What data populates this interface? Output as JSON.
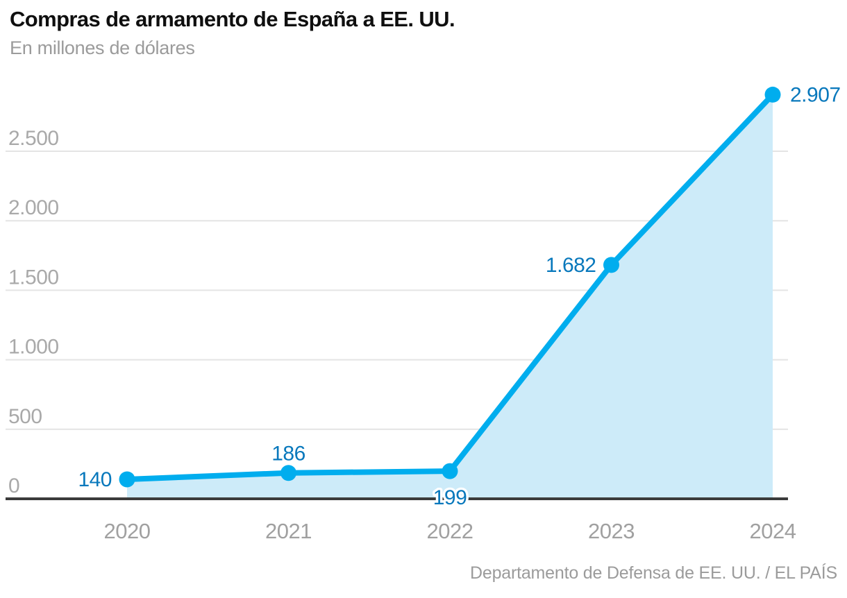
{
  "chart_data": {
    "type": "area",
    "title": "Compras de armamento de España a EE. UU.",
    "subtitle": "En millones de dólares",
    "source": "Departamento de Defensa de EE. UU. / EL PAÍS",
    "x": [
      2020,
      2021,
      2022,
      2023,
      2024
    ],
    "x_tick_labels": [
      "2020",
      "2021",
      "2022",
      "2023",
      "2024"
    ],
    "values": [
      140,
      186,
      199,
      1682,
      2907
    ],
    "point_labels": [
      "140",
      "186",
      "199",
      "1.682",
      "2.907"
    ],
    "label_positions": [
      "left",
      "top",
      "bottom",
      "left",
      "right"
    ],
    "y_ticks": [
      0,
      500,
      1000,
      1500,
      2000,
      2500
    ],
    "y_tick_labels": [
      "0",
      "500",
      "1.000",
      "1.500",
      "2.000",
      "2.500"
    ],
    "ylim": [
      0,
      2925
    ],
    "grid": true,
    "legend": false,
    "colors": {
      "line": "#00ADEE",
      "area": "#CDEBF9",
      "point_label": "#0878BC",
      "grid": "#E4E4E4",
      "axis": "#3B3B3B",
      "y_tick_label": "#A9A9A9",
      "x_tick_label": "#A0A0A0",
      "halo": "#FFFFFF"
    }
  }
}
